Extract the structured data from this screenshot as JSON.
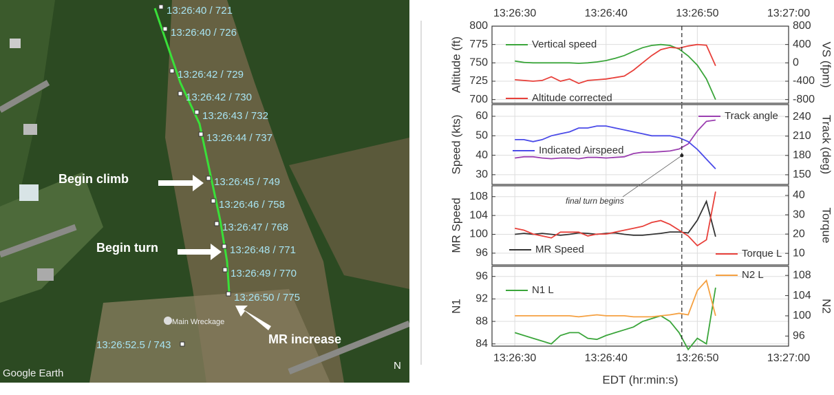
{
  "map": {
    "labels": [
      "13:26:40 / 721",
      "13:26:40 / 726",
      "13:26:42 / 729",
      "13:26:42 / 730",
      "13:26:43 / 732",
      "13:26:44 / 737",
      "13:26:45 / 749",
      "13:26:46 / 758",
      "13:26:47 / 768",
      "13:26:48 / 771",
      "13:26:49 / 770",
      "13:26:50 / 775",
      "13:26:52.5 / 743"
    ],
    "callouts": [
      "Begin climb",
      "Begin turn",
      "MR increase"
    ],
    "wreckage": "Main Wreckage",
    "credit": "Google Earth",
    "north": "N"
  },
  "chart_data": [
    {
      "type": "line",
      "ylabel": "Altitude (ft)",
      "y2label": "VS (fpm)",
      "grid": true,
      "xticks_top": true,
      "vline": 18.3,
      "xlim": [
        -2.5,
        30
      ],
      "xticks": [
        {
          "value": 0,
          "label": "13:26:30"
        },
        {
          "value": 10,
          "label": "13:26:40"
        },
        {
          "value": 20,
          "label": "13:26:50"
        },
        {
          "value": 30,
          "label": "13:27:00"
        }
      ],
      "ylim": [
        695,
        800
      ],
      "yticks": [
        700,
        725,
        750,
        775,
        800
      ],
      "y2lim": [
        -880,
        800
      ],
      "y2ticks": [
        -800,
        -400,
        0,
        400,
        800
      ],
      "x": [
        0,
        1,
        2,
        3,
        4,
        5,
        6,
        7,
        8,
        9,
        10,
        11,
        12,
        13,
        14,
        15,
        16,
        17,
        18,
        19,
        20,
        21,
        22
      ],
      "series": [
        {
          "name": "Vertical speed",
          "color": "#3aa53a",
          "axis": "y2",
          "values": [
            40,
            10,
            0,
            0,
            0,
            0,
            0,
            -10,
            0,
            20,
            50,
            100,
            160,
            250,
            330,
            380,
            400,
            380,
            300,
            150,
            -50,
            -350,
            -800
          ]
        },
        {
          "name": "Altitude corrected",
          "color": "#e8403a",
          "values": [
            727,
            726,
            725,
            726,
            731,
            725,
            728,
            722,
            726,
            727,
            728,
            730,
            732,
            740,
            750,
            760,
            768,
            771,
            770,
            773,
            775,
            774,
            746
          ]
        }
      ]
    },
    {
      "type": "line",
      "ylabel": "Speed (kts)",
      "y2label": "Track (deg)",
      "grid": true,
      "vline": 18.3,
      "xlim": [
        -2.5,
        30
      ],
      "xticks": [
        {
          "value": 0,
          "label": "13:26:30"
        },
        {
          "value": 10,
          "label": "13:26:40"
        },
        {
          "value": 20,
          "label": "13:26:50"
        },
        {
          "value": 30,
          "label": "13:27:00"
        }
      ],
      "ylim": [
        25,
        66
      ],
      "yticks": [
        30,
        40,
        50,
        60
      ],
      "y2lim": [
        135,
        259
      ],
      "y2ticks": [
        150,
        180,
        210,
        240
      ],
      "x": [
        0,
        1,
        2,
        3,
        4,
        5,
        6,
        7,
        8,
        9,
        10,
        11,
        12,
        13,
        14,
        15,
        16,
        17,
        18,
        19,
        20,
        21,
        22
      ],
      "series": [
        {
          "name": "Track angle",
          "color": "#9b3fb0",
          "axis": "y2",
          "values": [
            176,
            178,
            178,
            176,
            175,
            176,
            176,
            175,
            177,
            177,
            176,
            177,
            178,
            183,
            185,
            185,
            186,
            187,
            190,
            198,
            218,
            233,
            235
          ]
        },
        {
          "name": "Indicated Airspeed",
          "color": "#4a4ae8",
          "values": [
            48,
            48,
            47,
            48,
            50,
            51,
            52,
            54,
            54,
            55,
            55,
            54,
            53,
            52,
            51,
            50,
            50,
            50,
            49,
            47,
            43,
            38,
            33
          ]
        }
      ]
    },
    {
      "type": "line",
      "ylabel": "MR Speed",
      "y2label": "Torque",
      "grid": true,
      "vline": 18.3,
      "annotation": "final turn begins",
      "xlim": [
        -2.5,
        30
      ],
      "xticks": [
        {
          "value": 0,
          "label": "13:26:30"
        },
        {
          "value": 10,
          "label": "13:26:40"
        },
        {
          "value": 20,
          "label": "13:26:50"
        },
        {
          "value": 30,
          "label": "13:27:00"
        }
      ],
      "ylim": [
        93.5,
        110.3
      ],
      "yticks": [
        96,
        100,
        104,
        108
      ],
      "y2lim": [
        4,
        45
      ],
      "y2ticks": [
        10,
        20,
        30,
        40
      ],
      "x": [
        0,
        1,
        2,
        3,
        4,
        5,
        6,
        7,
        8,
        9,
        10,
        11,
        12,
        13,
        14,
        15,
        16,
        17,
        18,
        19,
        20,
        21,
        22
      ],
      "series": [
        {
          "name": "MR Speed",
          "color": "#333333",
          "values": [
            100,
            100.2,
            100,
            100.2,
            100,
            99.8,
            100,
            100.3,
            100.2,
            100,
            100.2,
            100.3,
            100,
            99.8,
            99.8,
            100,
            100.2,
            100.5,
            100.5,
            100.3,
            103,
            107,
            99.5
          ]
        },
        {
          "name": "Torque L",
          "color": "#e8403a",
          "axis": "y2",
          "values": [
            23,
            22,
            20,
            19,
            18,
            21,
            21,
            21,
            19,
            20,
            20,
            21,
            22,
            23,
            24,
            26,
            27,
            25,
            22,
            19,
            14,
            17,
            42
          ]
        }
      ]
    },
    {
      "type": "line",
      "ylabel": "N1",
      "y2label": "N2",
      "xlabel": "EDT (hr:min:s)",
      "grid": true,
      "xticks_bottom": true,
      "vline": 18.3,
      "xlim": [
        -2.5,
        30
      ],
      "xticks": [
        {
          "value": 0,
          "label": "13:26:30"
        },
        {
          "value": 10,
          "label": "13:26:40"
        },
        {
          "value": 20,
          "label": "13:26:50"
        },
        {
          "value": 30,
          "label": "13:27:00"
        }
      ],
      "ylim": [
        83.6,
        97.8
      ],
      "yticks": [
        84,
        88,
        92,
        96
      ],
      "y2lim": [
        94,
        109.8
      ],
      "y2ticks": [
        96,
        100,
        104,
        108
      ],
      "x": [
        0,
        1,
        2,
        3,
        4,
        5,
        6,
        7,
        8,
        9,
        10,
        11,
        12,
        13,
        14,
        15,
        16,
        17,
        18,
        19,
        20,
        21,
        22
      ],
      "series": [
        {
          "name": "N1 L",
          "color": "#3aa53a",
          "values": [
            86,
            85.5,
            85,
            84.5,
            84,
            85.5,
            86,
            86,
            85,
            84.8,
            85.5,
            86,
            86.5,
            87,
            88,
            88.5,
            89,
            88,
            86,
            83,
            85,
            84,
            94
          ]
        },
        {
          "name": "N2 L",
          "color": "#f5a040",
          "axis": "y2",
          "values": [
            100,
            100,
            100,
            100,
            100,
            100,
            100,
            99.8,
            100,
            100.2,
            100,
            100,
            100,
            99.8,
            99.8,
            99.8,
            100,
            100.2,
            100.5,
            100.2,
            105,
            107,
            100
          ]
        }
      ]
    }
  ]
}
